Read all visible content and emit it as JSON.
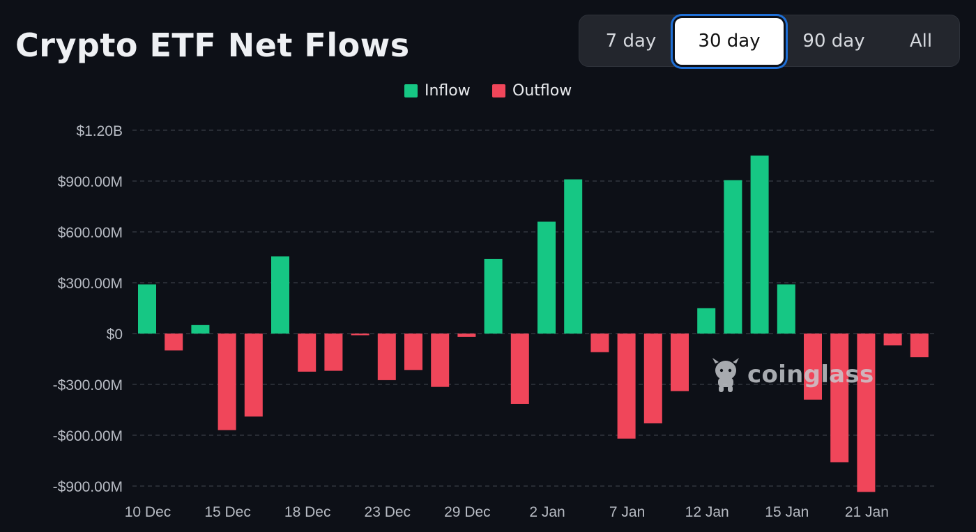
{
  "header": {
    "title": "Crypto ETF Net Flows"
  },
  "range_selector": {
    "options": [
      "7 day",
      "30 day",
      "90 day",
      "All"
    ],
    "selected": "30 day"
  },
  "watermark": {
    "text": "coinglass",
    "icon": "coinglass-mascot-icon"
  },
  "colors": {
    "inflow": "#16c784",
    "outflow": "#f0465a",
    "background": "#0d1017",
    "grid": "#3a3e46",
    "axis_text": "#b8bcc4"
  },
  "chart_data": {
    "type": "bar",
    "title": "Crypto ETF Net Flows",
    "xlabel": "",
    "ylabel": "",
    "ylim": [
      -950,
      1200
    ],
    "legend_position": "top-center",
    "grid": true,
    "series": [
      {
        "name": "Inflow",
        "color": "#16c784"
      },
      {
        "name": "Outflow",
        "color": "#f0465a"
      }
    ],
    "y_ticks": [
      {
        "value": 1200,
        "label": "$1.20B"
      },
      {
        "value": 900,
        "label": "$900.00M"
      },
      {
        "value": 600,
        "label": "$600.00M"
      },
      {
        "value": 300,
        "label": "$300.00M"
      },
      {
        "value": 0,
        "label": "$0"
      },
      {
        "value": -300,
        "label": "-$300.00M"
      },
      {
        "value": -600,
        "label": "-$600.00M"
      },
      {
        "value": -900,
        "label": "-$900.00M"
      }
    ],
    "x_tick_labels": [
      {
        "index": 0,
        "label": "10 Dec"
      },
      {
        "index": 3,
        "label": "15 Dec"
      },
      {
        "index": 6,
        "label": "18 Dec"
      },
      {
        "index": 9,
        "label": "23 Dec"
      },
      {
        "index": 12,
        "label": "29 Dec"
      },
      {
        "index": 15,
        "label": "2 Jan"
      },
      {
        "index": 18,
        "label": "7 Jan"
      },
      {
        "index": 21,
        "label": "12 Jan"
      },
      {
        "index": 24,
        "label": "15 Jan"
      },
      {
        "index": 27,
        "label": "21 Jan"
      }
    ],
    "values": [
      290,
      -100,
      50,
      -570,
      -490,
      455,
      -225,
      -220,
      -10,
      -275,
      -215,
      -315,
      -20,
      440,
      -415,
      660,
      910,
      -110,
      -620,
      -530,
      -340,
      150,
      905,
      1050,
      290,
      -390,
      -760,
      -935,
      -70,
      -140
    ]
  }
}
